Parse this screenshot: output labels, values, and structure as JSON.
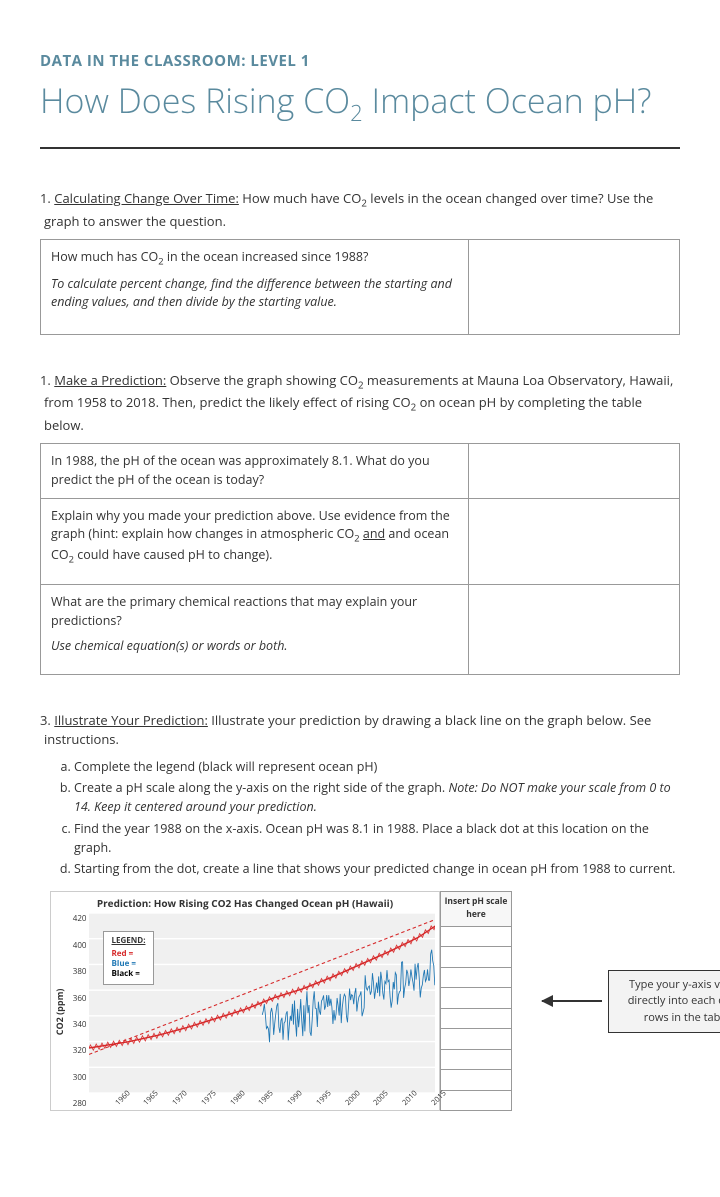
{
  "header": {
    "eyebrow": "DATA IN THE CLASSROOM: LEVEL 1",
    "title_pre": "How Does Rising CO",
    "title_sub": "2",
    "title_post": " Impact Ocean pH?"
  },
  "section1": {
    "num": "1.",
    "title": "Calculating Change Over Time:",
    "intro_pre": " How much have CO",
    "intro_sub": "2",
    "intro_post": " levels in the ocean changed over time? Use the graph to answer the question.",
    "q1_pre": "How much has CO",
    "q1_sub": "2",
    "q1_post": " in the ocean increased since 1988?",
    "q1_hint": "To calculate percent change, find the difference between the starting and ending values, and then divide by the starting value."
  },
  "section2": {
    "num": "1.",
    "title": "Make a Prediction:",
    "intro_l1_pre": "  Observe the graph showing CO",
    "intro_l1_sub": "2",
    "intro_l1_post": " measurements at Mauna Loa Observatory, Hawaii, from 1958 to ",
    "intro_l2_pre": "2018. Then, predict the likely effect of rising CO",
    "intro_l2_sub": "2",
    "intro_l2_post": " on ocean pH by completing the table below.",
    "row1": "In 1988, the pH of the ocean was approximately 8.1. What do you predict the pH of the ocean is today?",
    "row2_pre": "Explain why you made your prediction above. Use evidence from the graph (hint: explain how changes in atmospheric CO",
    "row2_sub1": "2",
    "row2_mid": " and ocean CO",
    "row2_sub2": "2",
    "row2_post": " could have caused pH to change).",
    "row2_and": "and",
    "row3": "What are the primary chemical reactions that may explain your predictions?",
    "row3_hint": "Use chemical equation(s) or words or both."
  },
  "section3": {
    "num": "3.",
    "title": "Illustrate Your Prediction:",
    "intro": " Illustrate your prediction by drawing a black line on the graph below. See instructions.",
    "items": {
      "a": "Complete the legend (black will represent ocean pH)",
      "b_pre": "Create a pH scale along the y-axis on the right side of the graph. ",
      "b_note": "Note: Do NOT make your scale from 0 to 14. Keep it centered around your prediction.",
      "c": "Find the year 1988 on the x-axis. Ocean pH was 8.1 in 1988. Place a black dot at this location on the graph.",
      "d": "Starting from the dot, create a line that shows your predicted change in ocean pH from 1988 to current."
    }
  },
  "chart": {
    "title": "Prediction: How Rising CO2 Has Changed Ocean pH (Hawaii)",
    "ylabel": "CO2 (ppm)",
    "yticks": [
      280,
      300,
      320,
      340,
      360,
      380,
      400,
      420
    ],
    "xticks": [
      1960,
      1965,
      1970,
      1975,
      1980,
      1985,
      1990,
      1995,
      2000,
      2005,
      2010,
      2015
    ],
    "legend_title": "LEGEND:",
    "legend_red": "Red =",
    "legend_blue": "Blue =",
    "legend_black": "Black =",
    "scale_header": "Insert pH scale here",
    "scale_rows": 9,
    "background_color": "#f0f0f0",
    "grid_color": "#ffffff",
    "red_line": {
      "color": "#d62728",
      "width": 1.6,
      "points": [
        [
          1958,
          315
        ],
        [
          1965,
          320
        ],
        [
          1970,
          325
        ],
        [
          1975,
          331
        ],
        [
          1980,
          338
        ],
        [
          1985,
          345
        ],
        [
          1990,
          354
        ],
        [
          1995,
          361
        ],
        [
          2000,
          370
        ],
        [
          2005,
          380
        ],
        [
          2010,
          390
        ],
        [
          2015,
          401
        ],
        [
          2018,
          410
        ]
      ]
    },
    "red_dash": {
      "color": "#d62728",
      "width": 1.2,
      "dash": "4,3",
      "points": [
        [
          1958,
          310
        ],
        [
          2018,
          415
        ]
      ]
    },
    "blue_line": {
      "color": "#1f77b4",
      "width": 1
    }
  },
  "callout": "Type your y-axis values directly into each of the rows in the table."
}
